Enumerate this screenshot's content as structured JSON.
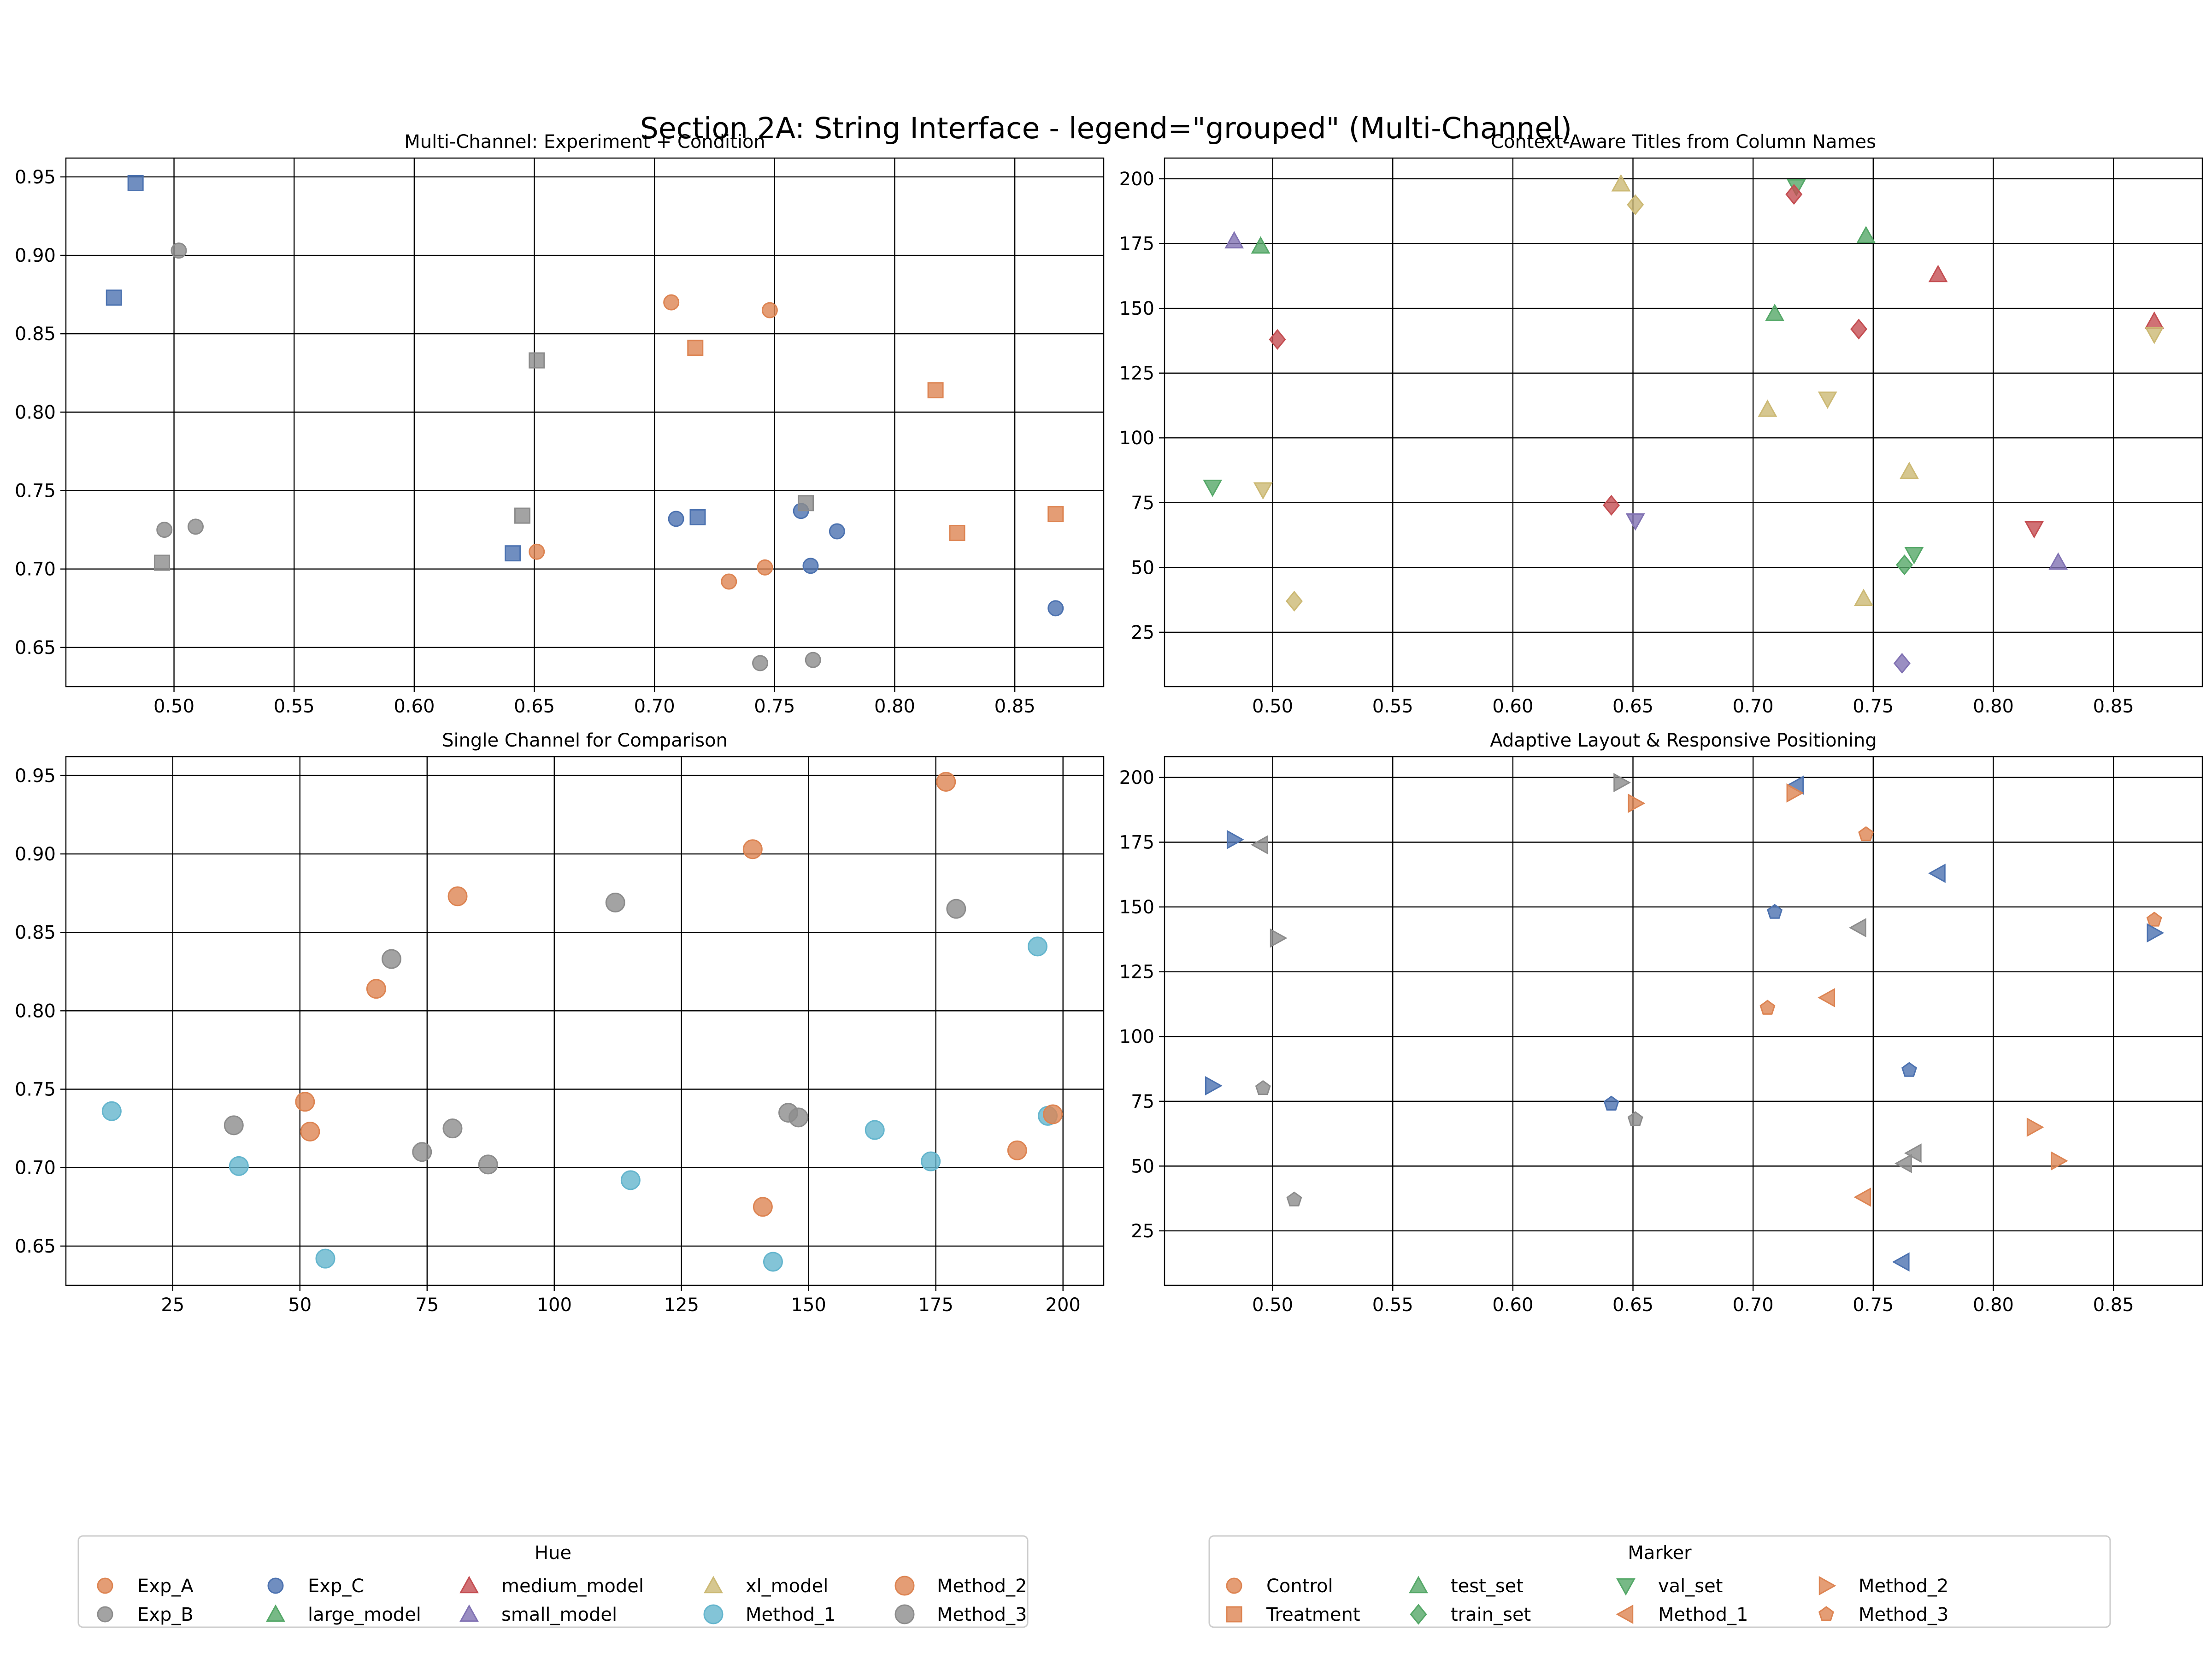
{
  "figure_title": "Section 2A: String Interface - legend=\"grouped\" (Multi-Channel)",
  "colors": {
    "Exp_A": "#dd8452",
    "Exp_B": "#8c8c8c",
    "Exp_C": "#4c72b0",
    "large_model": "#55a868",
    "medium_model": "#c44e52",
    "small_model": "#8172b3",
    "xl_model": "#ccb974",
    "Method_1": "#64b5cd",
    "Method_2": "#dd8452",
    "Method_3": "#8c8c8c",
    "Control": "#dd8452",
    "Treatment": "#dd8452",
    "test_set": "#55a868",
    "train_set": "#55a868",
    "val_set": "#55a868"
  },
  "chart_data": [
    {
      "id": "p1",
      "type": "scatter",
      "title": "Multi-Channel: Experiment + Condition",
      "xlim": [
        0.455,
        0.887
      ],
      "ylim": [
        0.625,
        0.962
      ],
      "xticks": [
        "0.50",
        "0.55",
        "0.60",
        "0.65",
        "0.70",
        "0.75",
        "0.80",
        "0.85"
      ],
      "yticks": [
        "0.65",
        "0.70",
        "0.75",
        "0.80",
        "0.85",
        "0.90",
        "0.95"
      ],
      "points": [
        {
          "x": 0.484,
          "y": 0.946,
          "hue": "Exp_C",
          "marker": "square"
        },
        {
          "x": 0.475,
          "y": 0.873,
          "hue": "Exp_C",
          "marker": "square"
        },
        {
          "x": 0.502,
          "y": 0.903,
          "hue": "Exp_B",
          "marker": "circle"
        },
        {
          "x": 0.496,
          "y": 0.725,
          "hue": "Exp_B",
          "marker": "circle"
        },
        {
          "x": 0.509,
          "y": 0.727,
          "hue": "Exp_B",
          "marker": "circle"
        },
        {
          "x": 0.495,
          "y": 0.704,
          "hue": "Exp_B",
          "marker": "square"
        },
        {
          "x": 0.651,
          "y": 0.833,
          "hue": "Exp_B",
          "marker": "square"
        },
        {
          "x": 0.645,
          "y": 0.734,
          "hue": "Exp_B",
          "marker": "square"
        },
        {
          "x": 0.641,
          "y": 0.71,
          "hue": "Exp_C",
          "marker": "square"
        },
        {
          "x": 0.651,
          "y": 0.711,
          "hue": "Exp_A",
          "marker": "circle"
        },
        {
          "x": 0.707,
          "y": 0.87,
          "hue": "Exp_A",
          "marker": "circle"
        },
        {
          "x": 0.748,
          "y": 0.865,
          "hue": "Exp_A",
          "marker": "circle"
        },
        {
          "x": 0.717,
          "y": 0.841,
          "hue": "Exp_A",
          "marker": "square"
        },
        {
          "x": 0.817,
          "y": 0.814,
          "hue": "Exp_A",
          "marker": "square"
        },
        {
          "x": 0.709,
          "y": 0.732,
          "hue": "Exp_C",
          "marker": "circle"
        },
        {
          "x": 0.718,
          "y": 0.733,
          "hue": "Exp_C",
          "marker": "square"
        },
        {
          "x": 0.761,
          "y": 0.737,
          "hue": "Exp_C",
          "marker": "circle"
        },
        {
          "x": 0.763,
          "y": 0.742,
          "hue": "Exp_B",
          "marker": "square"
        },
        {
          "x": 0.776,
          "y": 0.724,
          "hue": "Exp_C",
          "marker": "circle"
        },
        {
          "x": 0.731,
          "y": 0.692,
          "hue": "Exp_A",
          "marker": "circle"
        },
        {
          "x": 0.746,
          "y": 0.701,
          "hue": "Exp_A",
          "marker": "circle"
        },
        {
          "x": 0.765,
          "y": 0.702,
          "hue": "Exp_C",
          "marker": "circle"
        },
        {
          "x": 0.744,
          "y": 0.64,
          "hue": "Exp_B",
          "marker": "circle"
        },
        {
          "x": 0.766,
          "y": 0.642,
          "hue": "Exp_B",
          "marker": "circle"
        },
        {
          "x": 0.826,
          "y": 0.723,
          "hue": "Exp_A",
          "marker": "square"
        },
        {
          "x": 0.867,
          "y": 0.735,
          "hue": "Exp_A",
          "marker": "square"
        },
        {
          "x": 0.867,
          "y": 0.675,
          "hue": "Exp_C",
          "marker": "circle"
        }
      ]
    },
    {
      "id": "p2",
      "type": "scatter",
      "title": "Context-Aware Titles from Column Names",
      "xlim": [
        0.455,
        0.887
      ],
      "ylim": [
        4,
        208
      ],
      "xticks": [
        "0.50",
        "0.55",
        "0.60",
        "0.65",
        "0.70",
        "0.75",
        "0.80",
        "0.85"
      ],
      "yticks": [
        "25",
        "50",
        "75",
        "100",
        "125",
        "150",
        "175",
        "200"
      ],
      "points": [
        {
          "x": 0.645,
          "y": 198,
          "hue": "xl_model",
          "marker": "triangle-up"
        },
        {
          "x": 0.651,
          "y": 190,
          "hue": "xl_model",
          "marker": "diamond"
        },
        {
          "x": 0.718,
          "y": 197,
          "hue": "large_model",
          "marker": "triangle-down"
        },
        {
          "x": 0.717,
          "y": 194,
          "hue": "medium_model",
          "marker": "diamond"
        },
        {
          "x": 0.484,
          "y": 176,
          "hue": "small_model",
          "marker": "triangle-up"
        },
        {
          "x": 0.495,
          "y": 174,
          "hue": "large_model",
          "marker": "triangle-up"
        },
        {
          "x": 0.747,
          "y": 178,
          "hue": "large_model",
          "marker": "triangle-up"
        },
        {
          "x": 0.777,
          "y": 163,
          "hue": "medium_model",
          "marker": "triangle-up"
        },
        {
          "x": 0.709,
          "y": 148,
          "hue": "large_model",
          "marker": "triangle-up"
        },
        {
          "x": 0.744,
          "y": 142,
          "hue": "medium_model",
          "marker": "diamond"
        },
        {
          "x": 0.502,
          "y": 138,
          "hue": "medium_model",
          "marker": "diamond"
        },
        {
          "x": 0.867,
          "y": 145,
          "hue": "medium_model",
          "marker": "triangle-up"
        },
        {
          "x": 0.867,
          "y": 140,
          "hue": "xl_model",
          "marker": "triangle-down"
        },
        {
          "x": 0.706,
          "y": 111,
          "hue": "xl_model",
          "marker": "triangle-up"
        },
        {
          "x": 0.731,
          "y": 115,
          "hue": "xl_model",
          "marker": "triangle-down"
        },
        {
          "x": 0.765,
          "y": 87,
          "hue": "xl_model",
          "marker": "triangle-up"
        },
        {
          "x": 0.475,
          "y": 81,
          "hue": "large_model",
          "marker": "triangle-down"
        },
        {
          "x": 0.496,
          "y": 80,
          "hue": "xl_model",
          "marker": "triangle-down"
        },
        {
          "x": 0.641,
          "y": 74,
          "hue": "medium_model",
          "marker": "diamond"
        },
        {
          "x": 0.651,
          "y": 68,
          "hue": "small_model",
          "marker": "triangle-down"
        },
        {
          "x": 0.817,
          "y": 65,
          "hue": "medium_model",
          "marker": "triangle-down"
        },
        {
          "x": 0.767,
          "y": 55,
          "hue": "large_model",
          "marker": "triangle-down"
        },
        {
          "x": 0.763,
          "y": 51,
          "hue": "large_model",
          "marker": "diamond"
        },
        {
          "x": 0.827,
          "y": 52,
          "hue": "small_model",
          "marker": "triangle-up"
        },
        {
          "x": 0.746,
          "y": 38,
          "hue": "xl_model",
          "marker": "triangle-up"
        },
        {
          "x": 0.509,
          "y": 37,
          "hue": "xl_model",
          "marker": "diamond"
        },
        {
          "x": 0.762,
          "y": 13,
          "hue": "small_model",
          "marker": "diamond"
        }
      ]
    },
    {
      "id": "p3",
      "type": "scatter",
      "title": "Single Channel for Comparison",
      "xlim": [
        4,
        208
      ],
      "ylim": [
        0.625,
        0.962
      ],
      "xticks": [
        "25",
        "50",
        "75",
        "100",
        "125",
        "150",
        "175",
        "200"
      ],
      "yticks": [
        "0.65",
        "0.70",
        "0.75",
        "0.80",
        "0.85",
        "0.90",
        "0.95"
      ],
      "points": [
        {
          "x": 177,
          "y": 0.946,
          "hue": "Method_2",
          "marker": "circle"
        },
        {
          "x": 139,
          "y": 0.903,
          "hue": "Method_2",
          "marker": "circle"
        },
        {
          "x": 81,
          "y": 0.873,
          "hue": "Method_2",
          "marker": "circle"
        },
        {
          "x": 112,
          "y": 0.869,
          "hue": "Method_3",
          "marker": "circle"
        },
        {
          "x": 179,
          "y": 0.865,
          "hue": "Method_3",
          "marker": "circle"
        },
        {
          "x": 195,
          "y": 0.841,
          "hue": "Method_1",
          "marker": "circle"
        },
        {
          "x": 68,
          "y": 0.833,
          "hue": "Method_3",
          "marker": "circle"
        },
        {
          "x": 65,
          "y": 0.814,
          "hue": "Method_2",
          "marker": "circle"
        },
        {
          "x": 13,
          "y": 0.736,
          "hue": "Method_1",
          "marker": "circle"
        },
        {
          "x": 51,
          "y": 0.742,
          "hue": "Method_2",
          "marker": "circle"
        },
        {
          "x": 37,
          "y": 0.727,
          "hue": "Method_3",
          "marker": "circle"
        },
        {
          "x": 52,
          "y": 0.723,
          "hue": "Method_2",
          "marker": "circle"
        },
        {
          "x": 80,
          "y": 0.725,
          "hue": "Method_3",
          "marker": "circle"
        },
        {
          "x": 38,
          "y": 0.701,
          "hue": "Method_1",
          "marker": "circle"
        },
        {
          "x": 74,
          "y": 0.71,
          "hue": "Method_3",
          "marker": "circle"
        },
        {
          "x": 87,
          "y": 0.702,
          "hue": "Method_3",
          "marker": "circle"
        },
        {
          "x": 55,
          "y": 0.642,
          "hue": "Method_1",
          "marker": "circle"
        },
        {
          "x": 115,
          "y": 0.692,
          "hue": "Method_1",
          "marker": "circle"
        },
        {
          "x": 146,
          "y": 0.735,
          "hue": "Method_3",
          "marker": "circle"
        },
        {
          "x": 148,
          "y": 0.732,
          "hue": "Method_3",
          "marker": "circle"
        },
        {
          "x": 141,
          "y": 0.675,
          "hue": "Method_2",
          "marker": "circle"
        },
        {
          "x": 143,
          "y": 0.64,
          "hue": "Method_1",
          "marker": "circle"
        },
        {
          "x": 163,
          "y": 0.724,
          "hue": "Method_1",
          "marker": "circle"
        },
        {
          "x": 174,
          "y": 0.704,
          "hue": "Method_1",
          "marker": "circle"
        },
        {
          "x": 191,
          "y": 0.711,
          "hue": "Method_2",
          "marker": "circle"
        },
        {
          "x": 197,
          "y": 0.733,
          "hue": "Method_1",
          "marker": "circle"
        },
        {
          "x": 198,
          "y": 0.734,
          "hue": "Method_2",
          "marker": "circle"
        }
      ]
    },
    {
      "id": "p4",
      "type": "scatter",
      "title": "Adaptive Layout & Responsive Positioning",
      "xlim": [
        0.455,
        0.887
      ],
      "ylim": [
        4,
        208
      ],
      "xticks": [
        "0.50",
        "0.55",
        "0.60",
        "0.65",
        "0.70",
        "0.75",
        "0.80",
        "0.85"
      ],
      "yticks": [
        "25",
        "50",
        "75",
        "100",
        "125",
        "150",
        "175",
        "200"
      ],
      "points": [
        {
          "x": 0.645,
          "y": 198,
          "hue": "Exp_B",
          "marker": "triangle-right"
        },
        {
          "x": 0.651,
          "y": 190,
          "hue": "Exp_A",
          "marker": "triangle-right"
        },
        {
          "x": 0.718,
          "y": 197,
          "hue": "Exp_C",
          "marker": "triangle-left"
        },
        {
          "x": 0.717,
          "y": 194,
          "hue": "Exp_A",
          "marker": "triangle-right"
        },
        {
          "x": 0.484,
          "y": 176,
          "hue": "Exp_C",
          "marker": "triangle-right"
        },
        {
          "x": 0.495,
          "y": 174,
          "hue": "Exp_B",
          "marker": "triangle-left"
        },
        {
          "x": 0.747,
          "y": 178,
          "hue": "Exp_A",
          "marker": "pentagon"
        },
        {
          "x": 0.777,
          "y": 163,
          "hue": "Exp_C",
          "marker": "triangle-left"
        },
        {
          "x": 0.709,
          "y": 148,
          "hue": "Exp_C",
          "marker": "pentagon"
        },
        {
          "x": 0.744,
          "y": 142,
          "hue": "Exp_B",
          "marker": "triangle-left"
        },
        {
          "x": 0.502,
          "y": 138,
          "hue": "Exp_B",
          "marker": "triangle-right"
        },
        {
          "x": 0.867,
          "y": 145,
          "hue": "Exp_A",
          "marker": "pentagon"
        },
        {
          "x": 0.867,
          "y": 140,
          "hue": "Exp_C",
          "marker": "triangle-right"
        },
        {
          "x": 0.706,
          "y": 111,
          "hue": "Exp_A",
          "marker": "pentagon"
        },
        {
          "x": 0.731,
          "y": 115,
          "hue": "Exp_A",
          "marker": "triangle-left"
        },
        {
          "x": 0.765,
          "y": 87,
          "hue": "Exp_C",
          "marker": "pentagon"
        },
        {
          "x": 0.475,
          "y": 81,
          "hue": "Exp_C",
          "marker": "triangle-right"
        },
        {
          "x": 0.496,
          "y": 80,
          "hue": "Exp_B",
          "marker": "pentagon"
        },
        {
          "x": 0.641,
          "y": 74,
          "hue": "Exp_C",
          "marker": "pentagon"
        },
        {
          "x": 0.651,
          "y": 68,
          "hue": "Exp_B",
          "marker": "pentagon"
        },
        {
          "x": 0.817,
          "y": 65,
          "hue": "Exp_A",
          "marker": "triangle-right"
        },
        {
          "x": 0.767,
          "y": 55,
          "hue": "Exp_B",
          "marker": "triangle-left"
        },
        {
          "x": 0.763,
          "y": 51,
          "hue": "Exp_B",
          "marker": "triangle-left"
        },
        {
          "x": 0.827,
          "y": 52,
          "hue": "Exp_A",
          "marker": "triangle-right"
        },
        {
          "x": 0.746,
          "y": 38,
          "hue": "Exp_A",
          "marker": "triangle-left"
        },
        {
          "x": 0.509,
          "y": 37,
          "hue": "Exp_B",
          "marker": "pentagon"
        },
        {
          "x": 0.762,
          "y": 13,
          "hue": "Exp_C",
          "marker": "triangle-left"
        }
      ]
    }
  ],
  "legends": {
    "hue": {
      "title": "Hue",
      "location": "bottom-left",
      "items": [
        {
          "label": "Exp_A",
          "color": "#dd8452",
          "marker": "circle"
        },
        {
          "label": "Exp_B",
          "color": "#8c8c8c",
          "marker": "circle"
        },
        {
          "label": "Exp_C",
          "color": "#4c72b0",
          "marker": "circle"
        },
        {
          "label": "large_model",
          "color": "#55a868",
          "marker": "triangle-up"
        },
        {
          "label": "medium_model",
          "color": "#c44e52",
          "marker": "triangle-up"
        },
        {
          "label": "small_model",
          "color": "#8172b3",
          "marker": "triangle-up"
        },
        {
          "label": "xl_model",
          "color": "#ccb974",
          "marker": "triangle-up"
        },
        {
          "label": "Method_1",
          "color": "#64b5cd",
          "marker": "circle-large"
        },
        {
          "label": "Method_2",
          "color": "#dd8452",
          "marker": "circle-large"
        },
        {
          "label": "Method_3",
          "color": "#8c8c8c",
          "marker": "circle-large"
        }
      ]
    },
    "marker": {
      "title": "Marker",
      "location": "bottom-right",
      "items": [
        {
          "label": "Control",
          "color": "#dd8452",
          "marker": "circle"
        },
        {
          "label": "Treatment",
          "color": "#dd8452",
          "marker": "square"
        },
        {
          "label": "test_set",
          "color": "#55a868",
          "marker": "triangle-up"
        },
        {
          "label": "train_set",
          "color": "#55a868",
          "marker": "diamond"
        },
        {
          "label": "val_set",
          "color": "#55a868",
          "marker": "triangle-down"
        },
        {
          "label": "Method_1",
          "color": "#dd8452",
          "marker": "triangle-left"
        },
        {
          "label": "Method_2",
          "color": "#dd8452",
          "marker": "triangle-right"
        },
        {
          "label": "Method_3",
          "color": "#dd8452",
          "marker": "pentagon"
        }
      ]
    }
  }
}
